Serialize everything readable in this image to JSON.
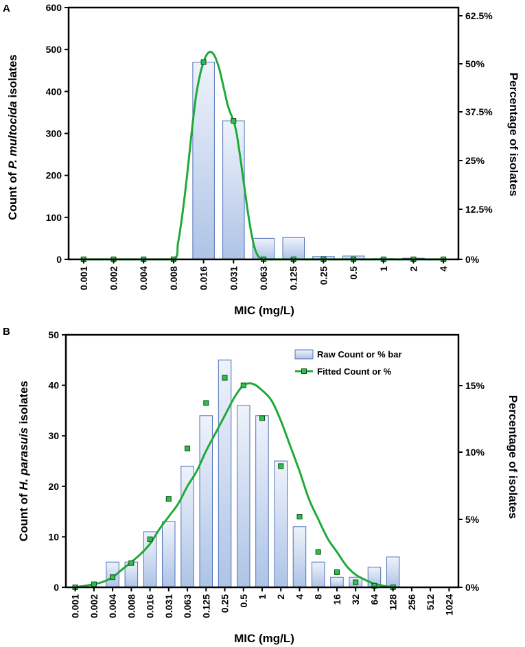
{
  "colors": {
    "bar_fill_top": "#eef3fb",
    "bar_fill_bottom": "#aec3e6",
    "bar_stroke": "#4f71b9",
    "curve": "#1faa37",
    "marker_fill": "#2fc04a",
    "marker_stroke": "#0d4a1a",
    "axis": "#000000"
  },
  "chart_data": [
    {
      "panel_label": "A",
      "type": "bar",
      "xlabel": "MIC (mg/L)",
      "ylabel_prefix": "Count of ",
      "ylabel_italic": "P. multocida",
      "ylabel_suffix": " isolates",
      "y2label": "Percentage of isolates",
      "categories": [
        "0.001",
        "0.002",
        "0.004",
        "0.008",
        "0.016",
        "0.031",
        "0.063",
        "0.125",
        "0.25",
        "0.5",
        "1",
        "2",
        "4"
      ],
      "values": [
        0,
        0,
        0,
        0,
        470,
        330,
        50,
        52,
        7,
        8,
        2,
        3,
        0
      ],
      "ylim": [
        0,
        600
      ],
      "yticks": [
        "0",
        "100",
        "200",
        "300",
        "400",
        "500",
        "600"
      ],
      "y2ticks": [
        "0%",
        "12.5%",
        "25%",
        "37.5%",
        "50%",
        "62.5%"
      ],
      "fitted_series": {
        "name": "Fitted Count or %",
        "points_x_index": [
          0,
          1,
          2,
          3,
          4,
          5,
          6,
          7,
          8,
          9,
          10,
          11,
          12
        ],
        "points_y": [
          0,
          0,
          0,
          0,
          470,
          330,
          0,
          0,
          0,
          0,
          0,
          0,
          0
        ],
        "curve_x": [
          0,
          1,
          2,
          3,
          3.15,
          3.3,
          3.45,
          3.6,
          3.75,
          3.9,
          4,
          4.1,
          4.2,
          4.3,
          4.4,
          4.5,
          4.6,
          4.7,
          4.8,
          4.9,
          5,
          5.1,
          5.2,
          5.3,
          5.4,
          5.5,
          5.6,
          5.7,
          5.8,
          5.9,
          6,
          6.15,
          6.3,
          7,
          8,
          9,
          10,
          11,
          12
        ],
        "curve_y": [
          0,
          0,
          0,
          0,
          40,
          110,
          200,
          300,
          390,
          445,
          470,
          487,
          494,
          492,
          480,
          460,
          432,
          400,
          369,
          348,
          330,
          301,
          255,
          204,
          152,
          102,
          60,
          28,
          10,
          2,
          0,
          0,
          0,
          0,
          0,
          0,
          0,
          0,
          0
        ]
      }
    },
    {
      "panel_label": "B",
      "type": "bar",
      "xlabel": "MIC (mg/L)",
      "ylabel_prefix": "Count of ",
      "ylabel_italic": "H. parasuis",
      "ylabel_suffix": " isolates",
      "y2label": "Percentage of isolates",
      "categories": [
        "0.001",
        "0.002",
        "0.004",
        "0.008",
        "0.016",
        "0.031",
        "0.063",
        "0.125",
        "0.25",
        "0.5",
        "1",
        "2",
        "4",
        "8",
        "16",
        "32",
        "64",
        "128",
        "256",
        "512",
        "1024"
      ],
      "values": [
        0,
        0,
        5,
        5,
        11,
        13,
        24,
        34,
        45,
        36,
        34,
        25,
        12,
        5,
        2,
        2,
        4,
        6,
        0,
        0,
        0
      ],
      "ylim": [
        0,
        50
      ],
      "yticks": [
        "0",
        "10",
        "20",
        "30",
        "40",
        "50"
      ],
      "y2ticks": [
        "0%",
        "5%",
        "10%",
        "15%"
      ],
      "legend": [
        "Raw Count or % bar",
        "Fitted Count or %"
      ],
      "fitted_series": {
        "name": "Fitted Count or %",
        "points_x_index": [
          0,
          0.5,
          1,
          1.5,
          2,
          2.5,
          3,
          3.5,
          4,
          4.5,
          5,
          5.5,
          6,
          6.5,
          7,
          7.5,
          8,
          8.5,
          9,
          9.5,
          10,
          10.5,
          11,
          11.5,
          12,
          12.5,
          13,
          13.5,
          14,
          14.5,
          15,
          15.5,
          16,
          16.5,
          17
        ],
        "points_y": [
          0,
          0.3,
          0.6,
          1.1,
          2.0,
          3.5,
          5.0,
          6.6,
          8.6,
          11.5,
          14.0,
          16.5,
          20.0,
          23.0,
          27.0,
          30.5,
          34.0,
          37.5,
          40.0,
          40.3,
          39.0,
          37.0,
          33.0,
          28.0,
          23.0,
          17.5,
          13.5,
          9.7,
          7.0,
          4.3,
          2.5,
          1.5,
          0.7,
          0.3,
          0
        ],
        "markers_x_index": [
          0,
          1,
          2,
          3,
          4,
          5,
          6,
          7,
          8,
          9,
          10,
          11,
          12,
          13,
          14,
          15,
          16,
          17
        ],
        "markers_y": [
          0,
          0.6,
          2.0,
          4.8,
          9.5,
          17.5,
          27.5,
          36.5,
          41.5,
          40.0,
          33.5,
          24.0,
          14.0,
          7.0,
          3.0,
          1.0,
          0.3,
          0
        ]
      }
    }
  ]
}
